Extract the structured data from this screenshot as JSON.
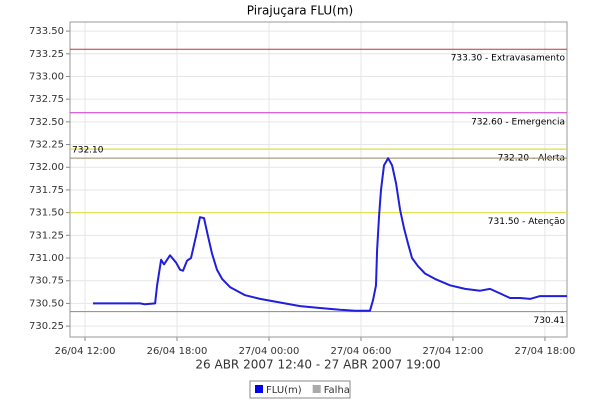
{
  "chart_data": {
    "type": "line",
    "title": "Pirajuçara FLU(m)",
    "xlabel": "26 ABR 2007 12:40 - 27 ABR 2007 19:00",
    "xlim": [
      11.02,
      43.44
    ],
    "xticks": [
      {
        "value": 12,
        "label": "26/04 12:00"
      },
      {
        "value": 18,
        "label": "26/04 18:00"
      },
      {
        "value": 24,
        "label": "27/04 00:00"
      },
      {
        "value": 30,
        "label": "27/04 06:00"
      },
      {
        "value": 36,
        "label": "27/04 12:00"
      },
      {
        "value": 42,
        "label": "27/04 18:00"
      }
    ],
    "ylim": [
      730.13,
      733.6
    ],
    "yticks": [
      730.25,
      {
        "value": 730.5,
        "label": "730.50"
      },
      730.75,
      {
        "value": 731,
        "label": "731.00"
      },
      731.25,
      {
        "value": 731.5,
        "label": "731.50"
      },
      731.75,
      {
        "value": 732,
        "label": "732.00"
      },
      732.25,
      {
        "value": 732.5,
        "label": "732.50"
      },
      732.75,
      {
        "value": 733,
        "label": "733.00"
      },
      733.25,
      {
        "value": 733.5,
        "label": "733.50"
      }
    ],
    "grid": true,
    "thresholds": [
      {
        "value": 733.3,
        "label": "733.30 - Extravasamento",
        "color": "#cc3333",
        "side": "right"
      },
      {
        "value": 732.6,
        "label": "732.60 - Emergencia",
        "color": "#cc33cc",
        "side": "right"
      },
      {
        "value": 732.2,
        "label": "732.20 - Alerta",
        "color": "#d8d800",
        "side": "right"
      },
      {
        "value": 732.1,
        "label": "732.10",
        "color": "#998866",
        "side": "left"
      },
      {
        "value": 731.5,
        "label": "731.50 - Atenção",
        "color": "#e0e040",
        "side": "right"
      },
      {
        "value": 730.41,
        "label": "730.41",
        "color": "#888888",
        "side": "right"
      }
    ],
    "legend": [
      {
        "name": "FLU(m)",
        "color": "#0000ee"
      },
      {
        "name": "Falha",
        "color": "#aaaaaa"
      }
    ],
    "series": [
      {
        "name": "FLU(m)",
        "color": "#1f1fdd",
        "x": [
          12.52,
          15.59,
          15.91,
          16.57,
          16.7,
          16.96,
          17.15,
          17.54,
          17.94,
          18.2,
          18.39,
          18.65,
          18.91,
          19.24,
          19.5,
          19.76,
          20.02,
          20.28,
          20.61,
          20.94,
          21.46,
          22.44,
          23.42,
          24.72,
          26.03,
          27.33,
          28.63,
          29.61,
          30.59,
          30.79,
          30.98,
          31.05,
          31.18,
          31.31,
          31.5,
          31.77,
          32.03,
          32.29,
          32.55,
          32.81,
          33.07,
          33.33,
          33.72,
          34.18,
          34.83,
          35.81,
          36.79,
          37.77,
          38.42,
          39.07,
          39.72,
          40.38,
          41.03,
          41.68,
          43.44
        ],
        "values": [
          730.5,
          730.5,
          730.49,
          730.5,
          730.7,
          730.98,
          730.93,
          731.03,
          730.95,
          730.87,
          730.86,
          730.97,
          731.0,
          731.24,
          731.45,
          731.44,
          731.24,
          731.05,
          730.87,
          730.77,
          730.68,
          730.59,
          730.55,
          730.51,
          730.47,
          730.45,
          730.43,
          730.42,
          730.42,
          730.54,
          730.7,
          731.09,
          731.47,
          731.75,
          732.02,
          732.1,
          732.02,
          731.82,
          731.53,
          731.33,
          731.16,
          731.0,
          730.91,
          730.83,
          730.77,
          730.7,
          730.66,
          730.64,
          730.66,
          730.61,
          730.56,
          730.56,
          730.55,
          730.58,
          730.58
        ]
      }
    ]
  }
}
